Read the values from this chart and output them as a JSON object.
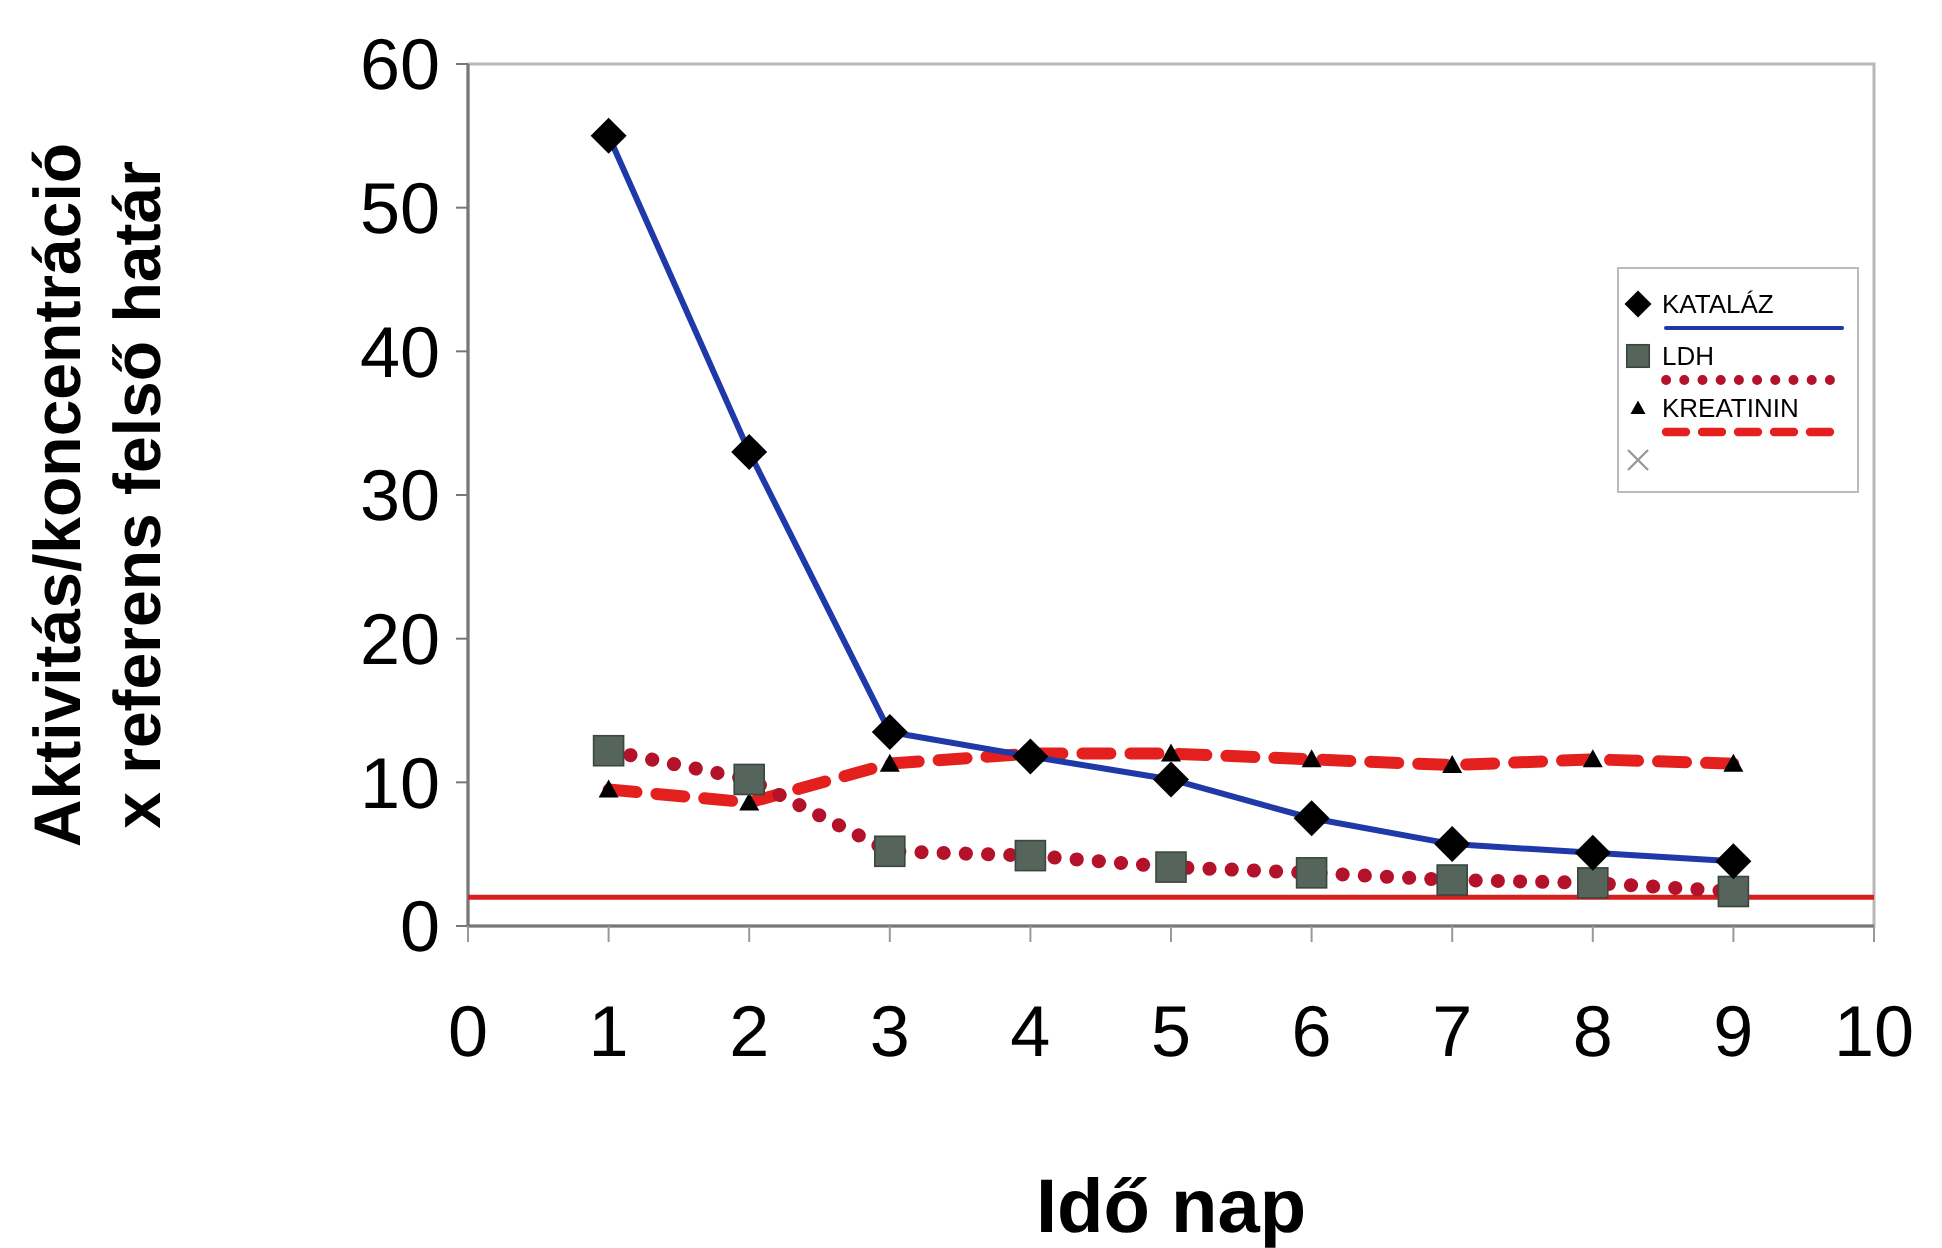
{
  "chart_data": {
    "type": "line",
    "xlabel": "Idő  nap",
    "ylabel": "Aktivitás/koncentráció\nx referens felső határ",
    "x": [
      1,
      2,
      3,
      4,
      5,
      6,
      7,
      8,
      9
    ],
    "series": [
      {
        "name": "KATALÁZ",
        "color": "#1f3aa8",
        "marker": "diamond",
        "line_style": "solid",
        "values": [
          55,
          33,
          13.5,
          11.8,
          10.2,
          7.5,
          5.7,
          5.1,
          4.5
        ]
      },
      {
        "name": "LDH",
        "color": "#b3122a",
        "marker": "square",
        "line_style": "dotted",
        "values": [
          12.2,
          10.2,
          5.2,
          4.9,
          4.1,
          3.7,
          3.2,
          3,
          2.4
        ]
      },
      {
        "name": "KREATININ",
        "color": "#e3201e",
        "marker": "triangle",
        "line_style": "dashed",
        "values": [
          9.5,
          8.6,
          11.3,
          12,
          12,
          11.6,
          11.2,
          11.6,
          11.3
        ]
      }
    ],
    "ref_lines": [
      {
        "axis": "y",
        "value": 2,
        "color": "#d81e1e"
      }
    ],
    "xlim": [
      0,
      10
    ],
    "xticks": [
      0,
      1,
      2,
      3,
      4,
      5,
      6,
      7,
      8,
      9,
      10
    ],
    "ylim": [
      0,
      60
    ],
    "yticks": [
      0,
      10,
      20,
      30,
      40,
      50,
      60
    ],
    "grid": false,
    "legend": "top right"
  }
}
